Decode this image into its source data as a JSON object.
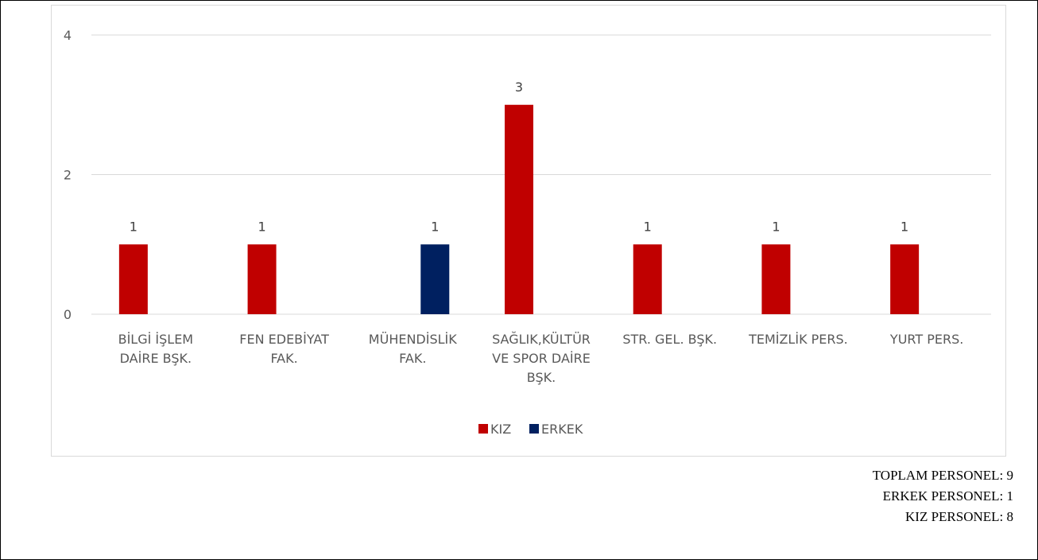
{
  "chart_data": {
    "type": "bar",
    "title": "",
    "xlabel": "",
    "ylabel": "",
    "ylim": [
      0,
      4
    ],
    "yticks": [
      0,
      2,
      4
    ],
    "grid": true,
    "legend_position": "bottom",
    "categories": [
      [
        "BİLGİ İŞLEM",
        "DAİRE BŞK."
      ],
      [
        "FEN EDEBİYAT",
        "FAK."
      ],
      [
        "MÜHENDİSLİK",
        "FAK."
      ],
      [
        "SAĞLIK,KÜLTÜR",
        "VE SPOR DAİRE",
        "BŞK."
      ],
      [
        "STR. GEL.  BŞK."
      ],
      [
        "TEMİZLİK PERS."
      ],
      [
        "YURT PERS."
      ]
    ],
    "series": [
      {
        "name": "KIZ",
        "color": "#c00000",
        "values": [
          1,
          1,
          null,
          3,
          1,
          1,
          1
        ]
      },
      {
        "name": "ERKEK",
        "color": "#002060",
        "values": [
          null,
          null,
          1,
          null,
          null,
          null,
          null
        ]
      }
    ]
  },
  "summary": {
    "total": "TOPLAM PERSONEL: 9",
    "male": "ERKEK PERSONEL: 1",
    "female": "KIZ PERSONEL: 8"
  }
}
